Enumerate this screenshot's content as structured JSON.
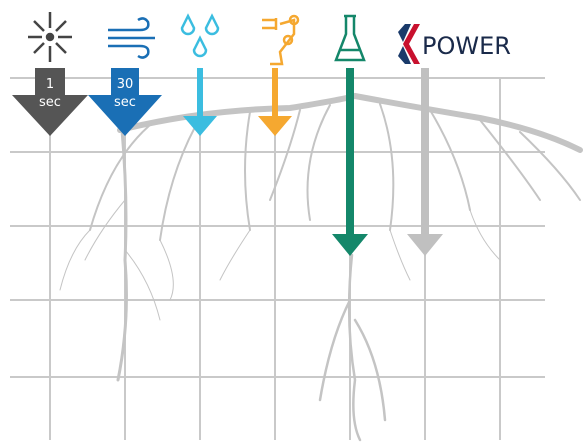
{
  "arrows": [
    {
      "value": "1",
      "unit": "sec"
    },
    {
      "value": "30",
      "unit": "sec"
    }
  ],
  "logo": {
    "text": "POWER"
  }
}
